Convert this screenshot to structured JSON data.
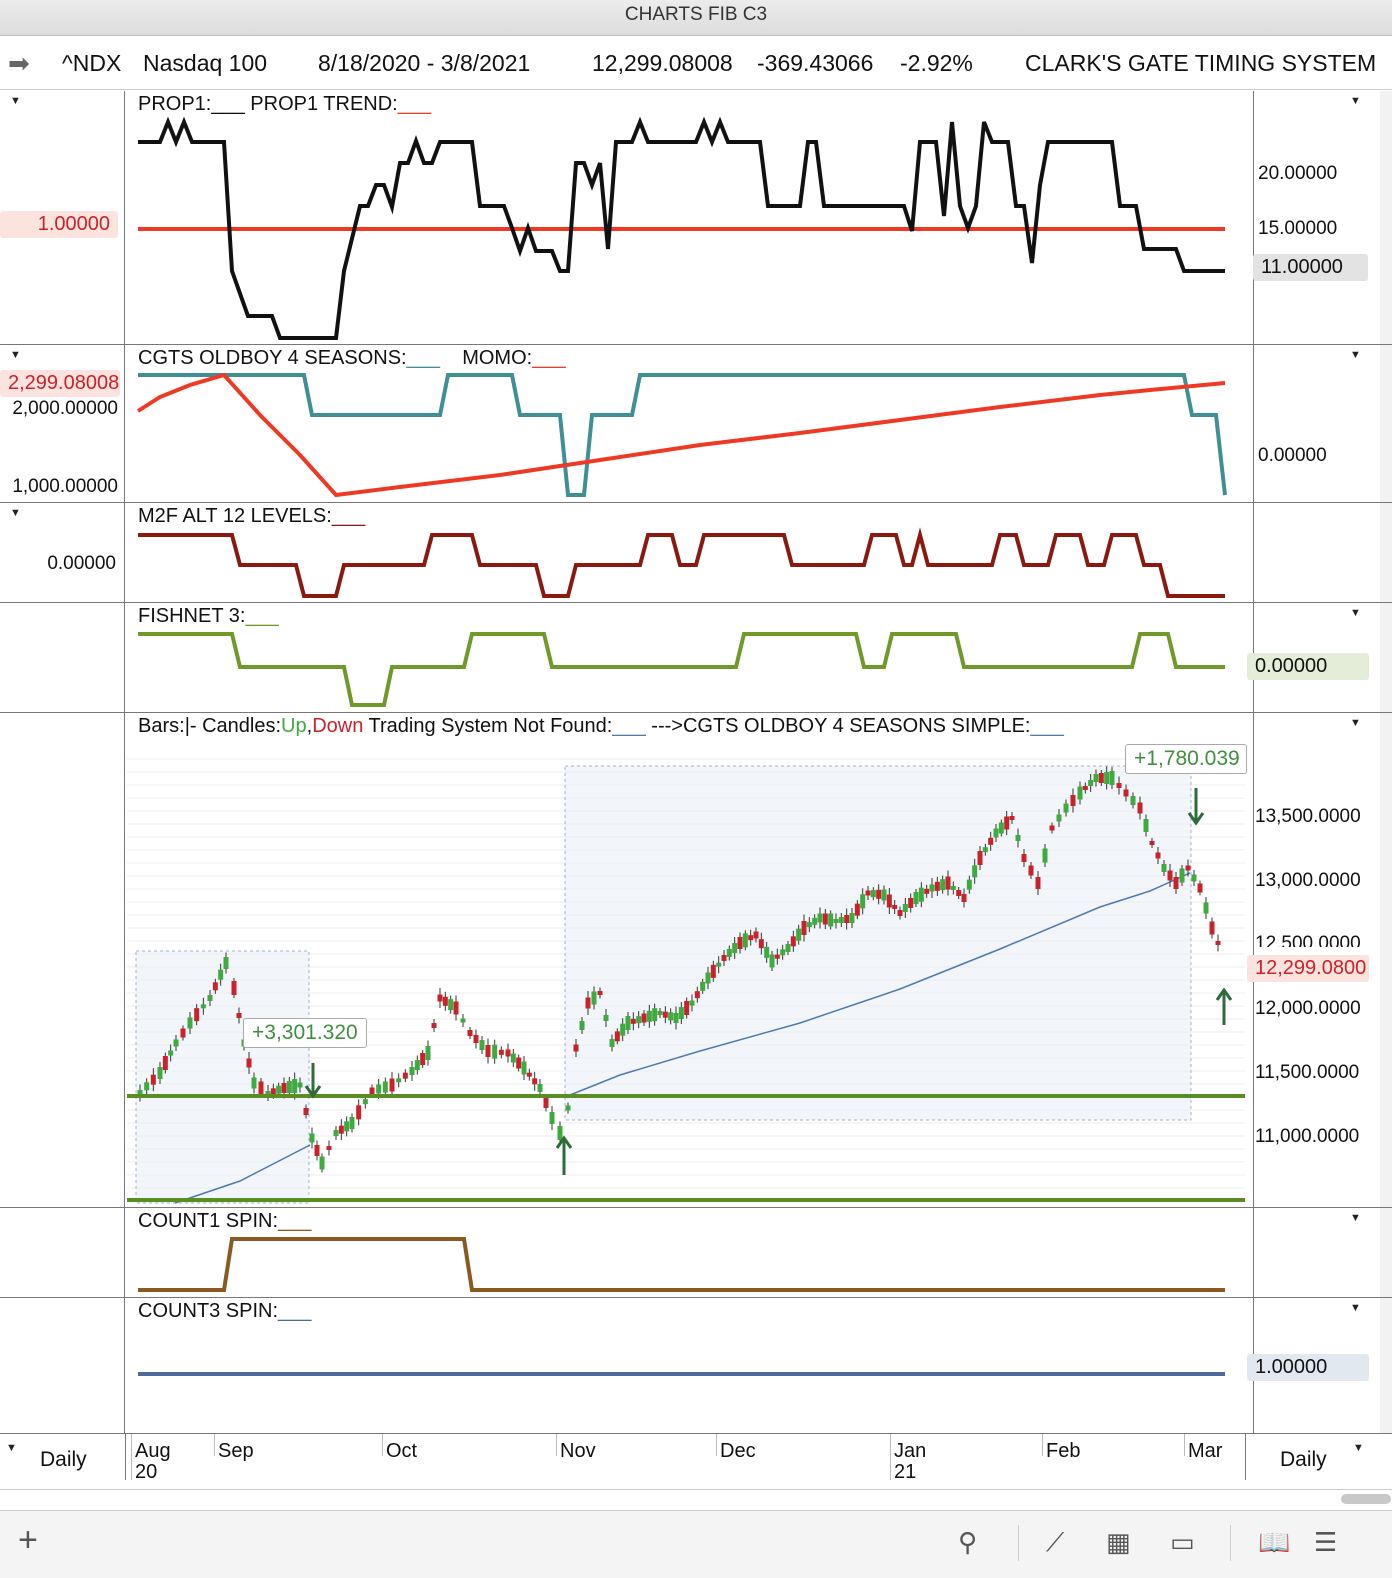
{
  "window": {
    "title": "CHARTS FIB C3"
  },
  "header": {
    "symbol": "^NDX",
    "name": "Nasdaq 100",
    "date_range": "8/18/2020 - 3/8/2021",
    "last": "12,299.08008",
    "change": "-369.43066",
    "change_pct": "-2.92%",
    "system": "CLARK'S GATE TIMING SYSTEM"
  },
  "panes": {
    "prop1": {
      "title": "PROP1:___    PROP1 TREND:",
      "trend_marker": "___",
      "left_value": "1.00000",
      "right_labels": [
        "20.00000",
        "15.00000",
        "11.00000"
      ]
    },
    "cgts": {
      "title": "CGTS OLDBOY 4 SEASONS:",
      "title_marker": "___",
      "momo_label": "MOMO:",
      "momo_marker": "___",
      "left_tag": "2,299.08008",
      "left_labels": [
        "2,000.00000",
        "1,000.00000"
      ],
      "right_labels": [
        "0.00000"
      ]
    },
    "m2f": {
      "title": "M2F ALT 12 LEVELS:",
      "marker": "___",
      "left_labels": [
        "0.00000"
      ]
    },
    "fishnet": {
      "title": "FISHNET 3:",
      "marker": "___",
      "right_tag": "0.00000"
    },
    "main": {
      "title_bars": "Bars:",
      "title_candles": "|- Candles:",
      "up": "Up",
      "down": "Down",
      "title_rest": "Trading System Not Found:",
      "marker1": "___",
      "title_sys": "--->CGTS OLDBOY 4 SEASONS SIMPLE:",
      "marker2": "___",
      "gain1": "+3,301.320",
      "gain2": "+1,780.039",
      "right_labels": [
        "13,500.0000",
        "13,000.0000",
        "12,500.0000",
        "12,000.0000",
        "11,500.0000",
        "11,000.0000"
      ],
      "price_tag": "12,299.0800"
    },
    "count1": {
      "title": "COUNT1 SPIN:",
      "marker": "___"
    },
    "count3": {
      "title": "COUNT3 SPIN:",
      "marker": "___",
      "right_tag": "1.00000"
    }
  },
  "axis": {
    "months": [
      "Aug",
      "Sep",
      "Oct",
      "Nov",
      "Dec",
      "Jan",
      "Feb",
      "Mar"
    ],
    "years": [
      "20",
      "21"
    ],
    "period_left": "Daily",
    "period_right": "Daily"
  },
  "colors": {
    "prop_line": "#111111",
    "trend_red": "#ee3a24",
    "teal": "#3f8f95",
    "maroon": "#8a1a10",
    "green": "#6f9a2a",
    "brown": "#8a5a22",
    "blue": "#4a6a9a",
    "candle_up": "#3faa3f",
    "candle_down": "#c8232b",
    "support_green": "#5a8e22"
  }
}
